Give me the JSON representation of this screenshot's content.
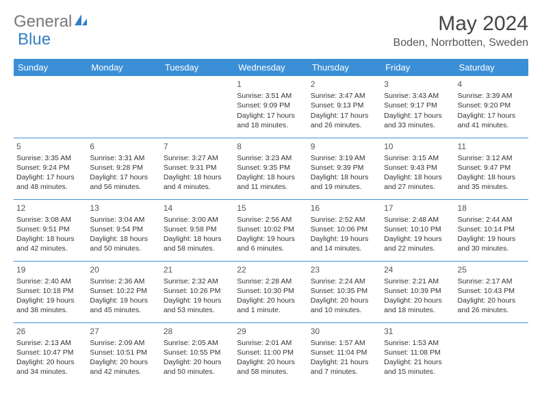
{
  "logo": {
    "text_gray": "General",
    "text_blue": "Blue",
    "text_gray_color": "#777777",
    "text_blue_color": "#2f7fc4",
    "icon_color": "#2f7fc4"
  },
  "title": "May 2024",
  "location": "Boden, Norrbotten, Sweden",
  "colors": {
    "header_bg": "#3b8fd6",
    "header_text": "#ffffff",
    "border": "#3b8fd6",
    "text": "#333333"
  },
  "day_headers": [
    "Sunday",
    "Monday",
    "Tuesday",
    "Wednesday",
    "Thursday",
    "Friday",
    "Saturday"
  ],
  "weeks": [
    [
      {
        "n": "",
        "lines": []
      },
      {
        "n": "",
        "lines": []
      },
      {
        "n": "",
        "lines": []
      },
      {
        "n": "1",
        "lines": [
          "Sunrise: 3:51 AM",
          "Sunset: 9:09 PM",
          "Daylight: 17 hours",
          "and 18 minutes."
        ]
      },
      {
        "n": "2",
        "lines": [
          "Sunrise: 3:47 AM",
          "Sunset: 9:13 PM",
          "Daylight: 17 hours",
          "and 26 minutes."
        ]
      },
      {
        "n": "3",
        "lines": [
          "Sunrise: 3:43 AM",
          "Sunset: 9:17 PM",
          "Daylight: 17 hours",
          "and 33 minutes."
        ]
      },
      {
        "n": "4",
        "lines": [
          "Sunrise: 3:39 AM",
          "Sunset: 9:20 PM",
          "Daylight: 17 hours",
          "and 41 minutes."
        ]
      }
    ],
    [
      {
        "n": "5",
        "lines": [
          "Sunrise: 3:35 AM",
          "Sunset: 9:24 PM",
          "Daylight: 17 hours",
          "and 48 minutes."
        ]
      },
      {
        "n": "6",
        "lines": [
          "Sunrise: 3:31 AM",
          "Sunset: 9:28 PM",
          "Daylight: 17 hours",
          "and 56 minutes."
        ]
      },
      {
        "n": "7",
        "lines": [
          "Sunrise: 3:27 AM",
          "Sunset: 9:31 PM",
          "Daylight: 18 hours",
          "and 4 minutes."
        ]
      },
      {
        "n": "8",
        "lines": [
          "Sunrise: 3:23 AM",
          "Sunset: 9:35 PM",
          "Daylight: 18 hours",
          "and 11 minutes."
        ]
      },
      {
        "n": "9",
        "lines": [
          "Sunrise: 3:19 AM",
          "Sunset: 9:39 PM",
          "Daylight: 18 hours",
          "and 19 minutes."
        ]
      },
      {
        "n": "10",
        "lines": [
          "Sunrise: 3:15 AM",
          "Sunset: 9:43 PM",
          "Daylight: 18 hours",
          "and 27 minutes."
        ]
      },
      {
        "n": "11",
        "lines": [
          "Sunrise: 3:12 AM",
          "Sunset: 9:47 PM",
          "Daylight: 18 hours",
          "and 35 minutes."
        ]
      }
    ],
    [
      {
        "n": "12",
        "lines": [
          "Sunrise: 3:08 AM",
          "Sunset: 9:51 PM",
          "Daylight: 18 hours",
          "and 42 minutes."
        ]
      },
      {
        "n": "13",
        "lines": [
          "Sunrise: 3:04 AM",
          "Sunset: 9:54 PM",
          "Daylight: 18 hours",
          "and 50 minutes."
        ]
      },
      {
        "n": "14",
        "lines": [
          "Sunrise: 3:00 AM",
          "Sunset: 9:58 PM",
          "Daylight: 18 hours",
          "and 58 minutes."
        ]
      },
      {
        "n": "15",
        "lines": [
          "Sunrise: 2:56 AM",
          "Sunset: 10:02 PM",
          "Daylight: 19 hours",
          "and 6 minutes."
        ]
      },
      {
        "n": "16",
        "lines": [
          "Sunrise: 2:52 AM",
          "Sunset: 10:06 PM",
          "Daylight: 19 hours",
          "and 14 minutes."
        ]
      },
      {
        "n": "17",
        "lines": [
          "Sunrise: 2:48 AM",
          "Sunset: 10:10 PM",
          "Daylight: 19 hours",
          "and 22 minutes."
        ]
      },
      {
        "n": "18",
        "lines": [
          "Sunrise: 2:44 AM",
          "Sunset: 10:14 PM",
          "Daylight: 19 hours",
          "and 30 minutes."
        ]
      }
    ],
    [
      {
        "n": "19",
        "lines": [
          "Sunrise: 2:40 AM",
          "Sunset: 10:18 PM",
          "Daylight: 19 hours",
          "and 38 minutes."
        ]
      },
      {
        "n": "20",
        "lines": [
          "Sunrise: 2:36 AM",
          "Sunset: 10:22 PM",
          "Daylight: 19 hours",
          "and 45 minutes."
        ]
      },
      {
        "n": "21",
        "lines": [
          "Sunrise: 2:32 AM",
          "Sunset: 10:26 PM",
          "Daylight: 19 hours",
          "and 53 minutes."
        ]
      },
      {
        "n": "22",
        "lines": [
          "Sunrise: 2:28 AM",
          "Sunset: 10:30 PM",
          "Daylight: 20 hours",
          "and 1 minute."
        ]
      },
      {
        "n": "23",
        "lines": [
          "Sunrise: 2:24 AM",
          "Sunset: 10:35 PM",
          "Daylight: 20 hours",
          "and 10 minutes."
        ]
      },
      {
        "n": "24",
        "lines": [
          "Sunrise: 2:21 AM",
          "Sunset: 10:39 PM",
          "Daylight: 20 hours",
          "and 18 minutes."
        ]
      },
      {
        "n": "25",
        "lines": [
          "Sunrise: 2:17 AM",
          "Sunset: 10:43 PM",
          "Daylight: 20 hours",
          "and 26 minutes."
        ]
      }
    ],
    [
      {
        "n": "26",
        "lines": [
          "Sunrise: 2:13 AM",
          "Sunset: 10:47 PM",
          "Daylight: 20 hours",
          "and 34 minutes."
        ]
      },
      {
        "n": "27",
        "lines": [
          "Sunrise: 2:09 AM",
          "Sunset: 10:51 PM",
          "Daylight: 20 hours",
          "and 42 minutes."
        ]
      },
      {
        "n": "28",
        "lines": [
          "Sunrise: 2:05 AM",
          "Sunset: 10:55 PM",
          "Daylight: 20 hours",
          "and 50 minutes."
        ]
      },
      {
        "n": "29",
        "lines": [
          "Sunrise: 2:01 AM",
          "Sunset: 11:00 PM",
          "Daylight: 20 hours",
          "and 58 minutes."
        ]
      },
      {
        "n": "30",
        "lines": [
          "Sunrise: 1:57 AM",
          "Sunset: 11:04 PM",
          "Daylight: 21 hours",
          "and 7 minutes."
        ]
      },
      {
        "n": "31",
        "lines": [
          "Sunrise: 1:53 AM",
          "Sunset: 11:08 PM",
          "Daylight: 21 hours",
          "and 15 minutes."
        ]
      },
      {
        "n": "",
        "lines": []
      }
    ]
  ]
}
